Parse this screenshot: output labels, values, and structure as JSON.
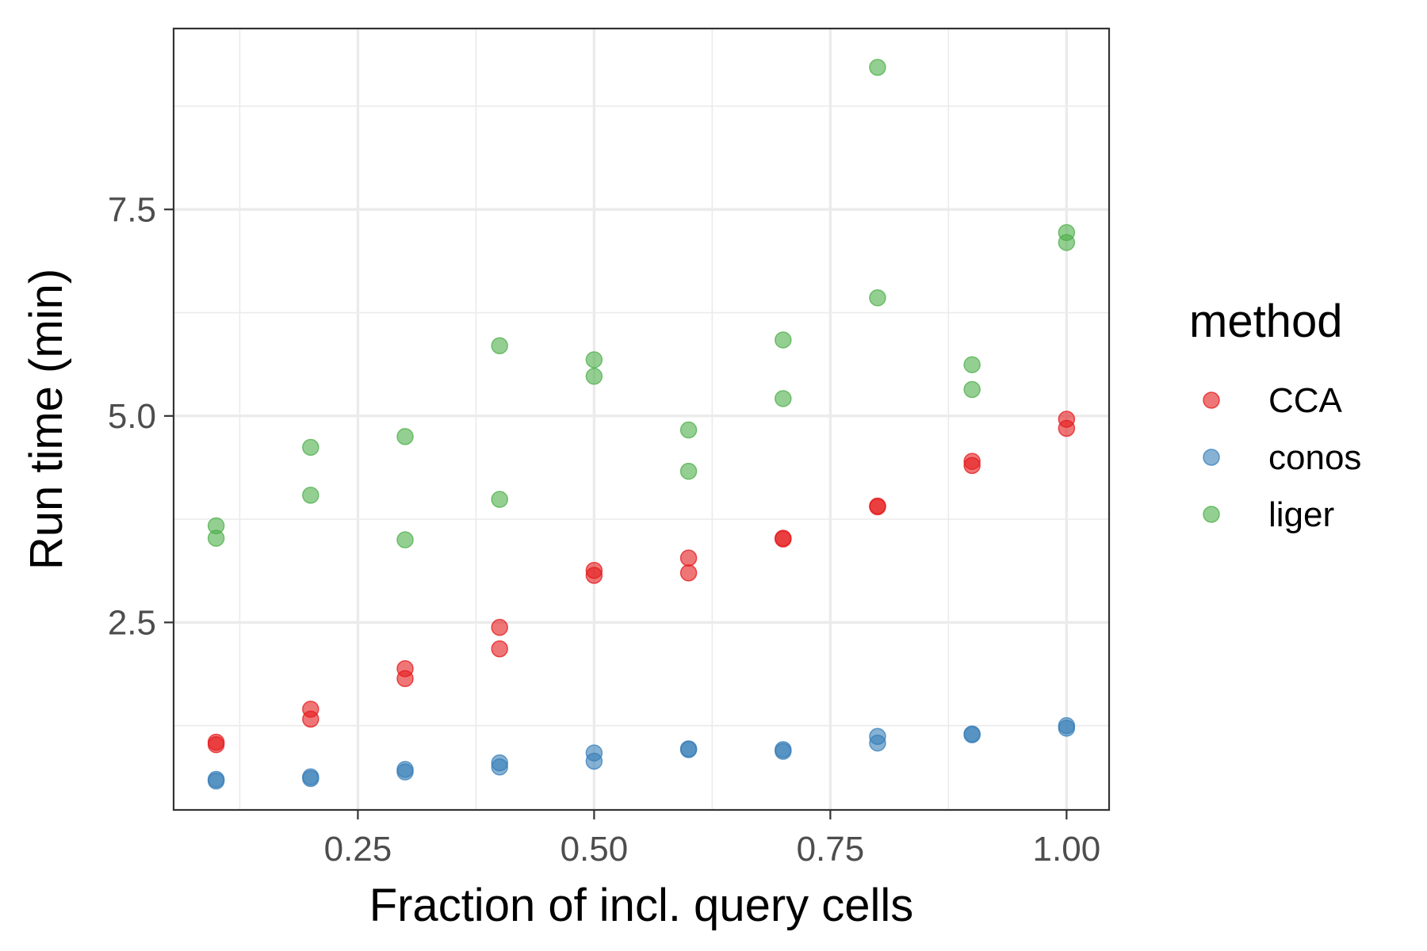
{
  "chart_data": {
    "type": "scatter",
    "xlabel": "Fraction of incl. query cells",
    "ylabel": "Run time (min)",
    "xlim": [
      0.055,
      1.045
    ],
    "ylim": [
      0.23,
      9.69
    ],
    "x_ticks": [
      0.25,
      0.5,
      0.75,
      1.0
    ],
    "x_tick_labels": [
      "0.25",
      "0.50",
      "0.75",
      "1.00"
    ],
    "y_ticks": [
      2.5,
      5.0,
      7.5
    ],
    "y_tick_labels": [
      "2.5",
      "5.0",
      "7.5"
    ],
    "grid": true,
    "legend": {
      "title": "method",
      "placement": "right"
    },
    "series": [
      {
        "name": "CCA",
        "color": "#E41A1C",
        "points": [
          [
            0.1,
            1.05
          ],
          [
            0.1,
            1.02
          ],
          [
            0.2,
            1.45
          ],
          [
            0.2,
            1.33
          ],
          [
            0.3,
            1.94
          ],
          [
            0.3,
            1.82
          ],
          [
            0.4,
            2.44
          ],
          [
            0.4,
            2.18
          ],
          [
            0.5,
            3.13
          ],
          [
            0.5,
            3.07
          ],
          [
            0.6,
            3.28
          ],
          [
            0.6,
            3.1
          ],
          [
            0.7,
            3.51
          ],
          [
            0.7,
            3.52
          ],
          [
            0.8,
            3.9
          ],
          [
            0.8,
            3.91
          ],
          [
            0.9,
            4.45
          ],
          [
            0.9,
            4.4
          ],
          [
            1.0,
            4.96
          ],
          [
            1.0,
            4.85
          ]
        ]
      },
      {
        "name": "conos",
        "color": "#377EB8",
        "points": [
          [
            0.1,
            0.6
          ],
          [
            0.1,
            0.58
          ],
          [
            0.2,
            0.63
          ],
          [
            0.2,
            0.61
          ],
          [
            0.3,
            0.72
          ],
          [
            0.3,
            0.69
          ],
          [
            0.4,
            0.8
          ],
          [
            0.4,
            0.75
          ],
          [
            0.5,
            0.92
          ],
          [
            0.5,
            0.82
          ],
          [
            0.6,
            0.97
          ],
          [
            0.6,
            0.96
          ],
          [
            0.7,
            0.96
          ],
          [
            0.7,
            0.94
          ],
          [
            0.8,
            1.12
          ],
          [
            0.8,
            1.04
          ],
          [
            0.9,
            1.15
          ],
          [
            0.9,
            1.14
          ],
          [
            1.0,
            1.25
          ],
          [
            1.0,
            1.22
          ]
        ]
      },
      {
        "name": "liger",
        "color": "#4DAF4A",
        "points": [
          [
            0.1,
            3.67
          ],
          [
            0.1,
            3.52
          ],
          [
            0.2,
            4.62
          ],
          [
            0.2,
            4.04
          ],
          [
            0.3,
            4.75
          ],
          [
            0.3,
            3.5
          ],
          [
            0.4,
            5.85
          ],
          [
            0.4,
            3.99
          ],
          [
            0.5,
            5.68
          ],
          [
            0.5,
            5.48
          ],
          [
            0.6,
            4.83
          ],
          [
            0.6,
            4.33
          ],
          [
            0.7,
            5.92
          ],
          [
            0.7,
            5.21
          ],
          [
            0.8,
            9.22
          ],
          [
            0.8,
            6.43
          ],
          [
            0.9,
            5.62
          ],
          [
            0.9,
            5.32
          ],
          [
            1.0,
            7.22
          ],
          [
            1.0,
            7.1
          ]
        ]
      }
    ]
  }
}
